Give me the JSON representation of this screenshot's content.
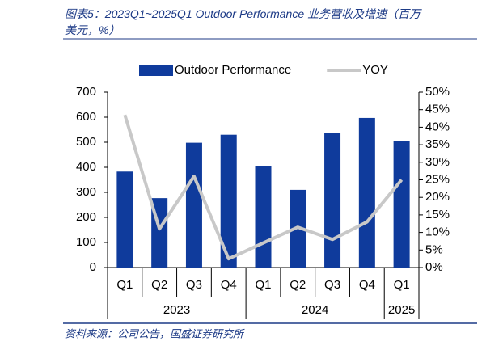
{
  "header": {
    "title": "图表5：2023Q1~2025Q1 Outdoor Performance 业务营收及增速（百万美元，%）",
    "source": "资料来源：公司公告，国盛证券研究所"
  },
  "chart_data": {
    "type": "bar-line",
    "groups": [
      {
        "name": "2023",
        "categories": [
          "Q1",
          "Q2",
          "Q3",
          "Q4"
        ]
      },
      {
        "name": "2024",
        "categories": [
          "Q1",
          "Q2",
          "Q3",
          "Q4"
        ]
      },
      {
        "name": "2025",
        "categories": [
          "Q1"
        ]
      }
    ],
    "series": [
      {
        "name": "Outdoor Performance",
        "type": "bar",
        "color": "#0f3b9c",
        "values": [
          383,
          277,
          498,
          530,
          405,
          310,
          537,
          597,
          505
        ]
      },
      {
        "name": "YOY",
        "type": "line",
        "axis": "y2",
        "color": "#c8c8c8",
        "values": [
          43.5,
          11,
          26,
          2.5,
          7,
          11.5,
          8,
          13,
          25
        ]
      }
    ],
    "ylim": [
      0,
      700
    ],
    "yticks": [
      0,
      100,
      200,
      300,
      400,
      500,
      600,
      700
    ],
    "y2lim": [
      0,
      50
    ],
    "y2ticks": [
      {
        "value": 0,
        "label": "0%"
      },
      {
        "value": 5,
        "label": "5%"
      },
      {
        "value": 10,
        "label": "10%"
      },
      {
        "value": 15,
        "label": "15%"
      },
      {
        "value": 20,
        "label": "20%"
      },
      {
        "value": 25,
        "label": "25%"
      },
      {
        "value": 30,
        "label": "30%"
      },
      {
        "value": 35,
        "label": "35%"
      },
      {
        "value": 40,
        "label": "40%"
      },
      {
        "value": 45,
        "label": "45%"
      },
      {
        "value": 50,
        "label": "50%"
      }
    ],
    "legend": "top"
  }
}
